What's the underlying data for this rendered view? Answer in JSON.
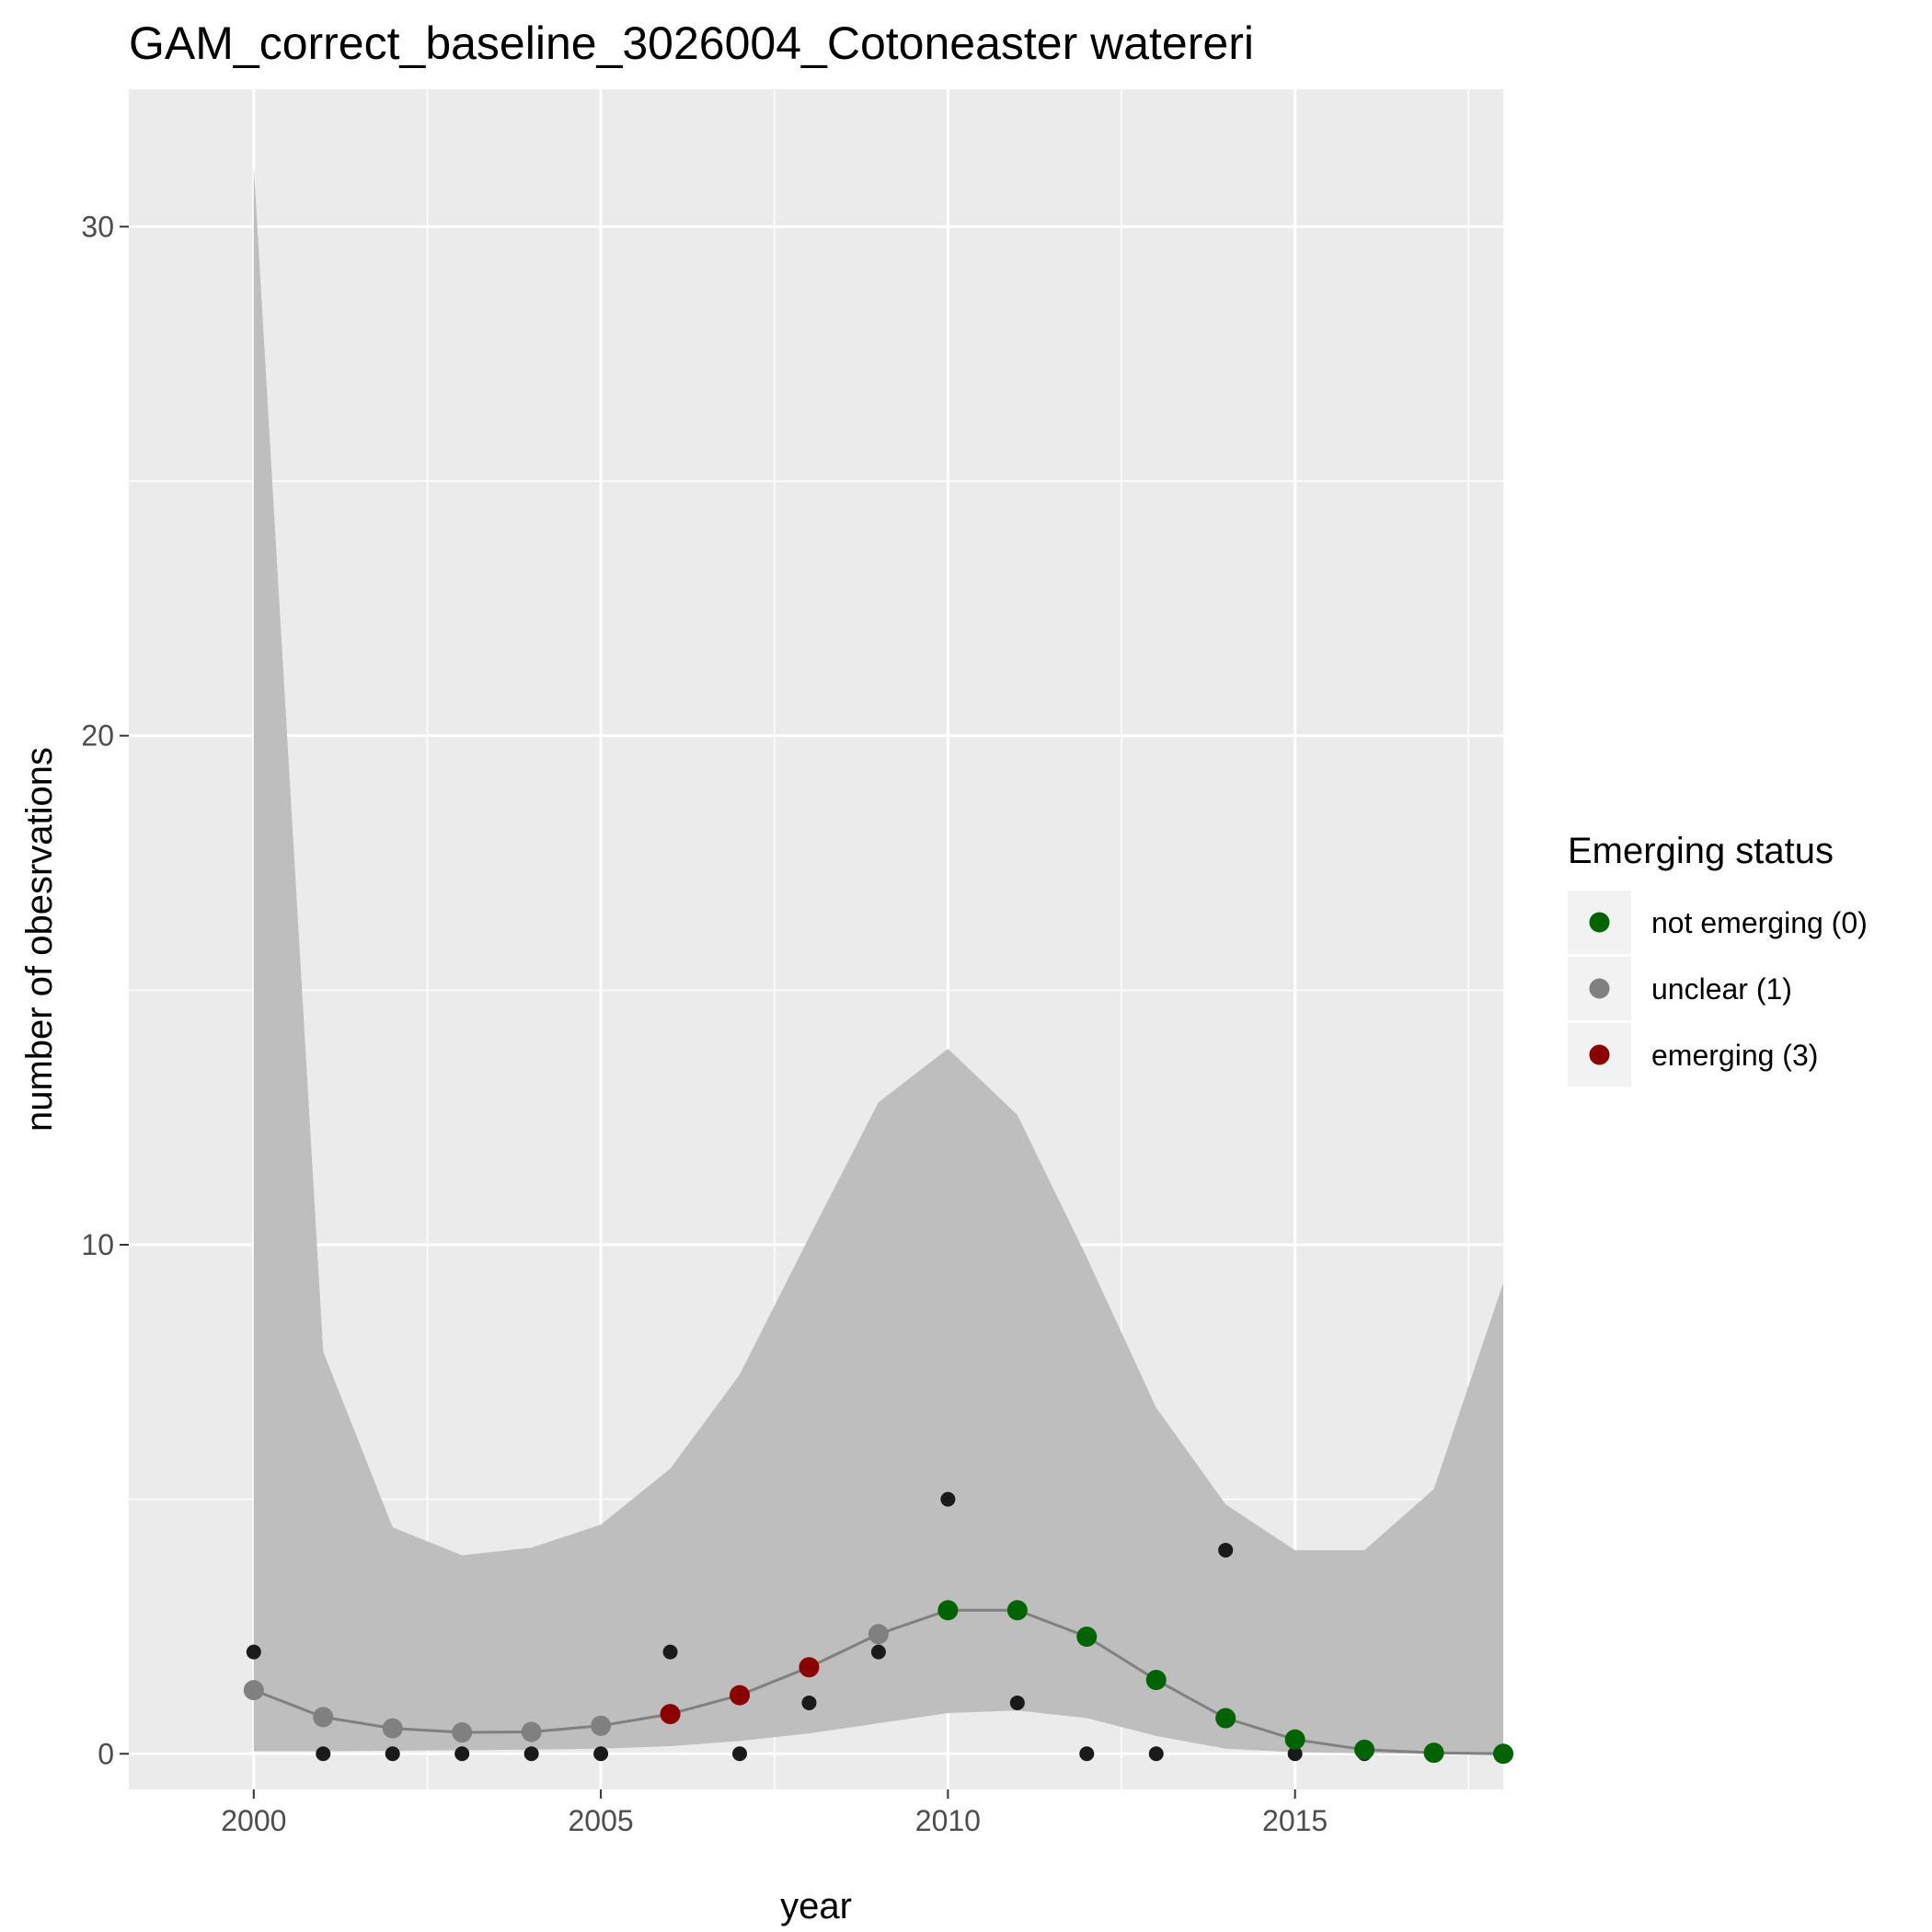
{
  "chart_data": {
    "type": "line",
    "title": "GAM_correct_baseline_3026004_Cotoneaster watereri",
    "xlabel": "year",
    "ylabel": "number of obesrvations",
    "xlim": [
      1998.2,
      2018.0
    ],
    "ylim": [
      -0.7,
      32.7
    ],
    "x_ticks": [
      2000,
      2005,
      2010,
      2015
    ],
    "y_ticks": [
      0,
      10,
      20,
      30
    ],
    "x_minor_ticks": [
      2002.5,
      2007.5,
      2012.5,
      2017.5
    ],
    "y_minor_ticks": [
      5,
      15,
      25
    ],
    "grid": true,
    "x": [
      2000,
      2001,
      2002,
      2003,
      2004,
      2005,
      2006,
      2007,
      2008,
      2009,
      2010,
      2011,
      2012,
      2013,
      2014,
      2015,
      2016,
      2017,
      2018
    ],
    "ribbon_upper": [
      31.2,
      7.9,
      4.45,
      3.9,
      4.05,
      4.5,
      5.6,
      7.45,
      10.15,
      12.8,
      13.85,
      12.55,
      9.75,
      6.8,
      4.9,
      4.0,
      4.0,
      5.2,
      9.25
    ],
    "ribbon_lower": [
      0.05,
      0.05,
      0.06,
      0.07,
      0.08,
      0.1,
      0.15,
      0.25,
      0.4,
      0.6,
      0.8,
      0.85,
      0.7,
      0.35,
      0.1,
      0.03,
      0.01,
      0.0,
      0.0
    ],
    "series": [
      {
        "name": "observed",
        "type": "scatter",
        "color": "#1a1a1a",
        "values": [
          2,
          0,
          0,
          0,
          0,
          0,
          2,
          0,
          1,
          2,
          5,
          1,
          0,
          0,
          4,
          0,
          0,
          0,
          0
        ]
      },
      {
        "name": "fitted",
        "type": "line",
        "color": "#808080",
        "values": [
          1.25,
          0.72,
          0.5,
          0.42,
          0.43,
          0.55,
          0.78,
          1.15,
          1.7,
          2.35,
          2.82,
          2.82,
          2.3,
          1.45,
          0.7,
          0.28,
          0.08,
          0.02,
          0.0
        ],
        "status": [
          1,
          1,
          1,
          1,
          1,
          1,
          3,
          3,
          3,
          1,
          0,
          0,
          0,
          0,
          0,
          0,
          0,
          0,
          0
        ]
      }
    ],
    "legend": {
      "title": "Emerging status",
      "position": "right",
      "entries": [
        {
          "label": "not emerging (0)",
          "status": 0,
          "color": "#006400"
        },
        {
          "label": "unclear (1)",
          "status": 1,
          "color": "#808080"
        },
        {
          "label": "emerging (3)",
          "status": 3,
          "color": "#8b0000"
        }
      ]
    },
    "colors": {
      "panel": "#ebebeb",
      "ribbon": "#bebebe",
      "grid": "#ffffff",
      "line": "#808080",
      "observed": "#1a1a1a"
    }
  }
}
